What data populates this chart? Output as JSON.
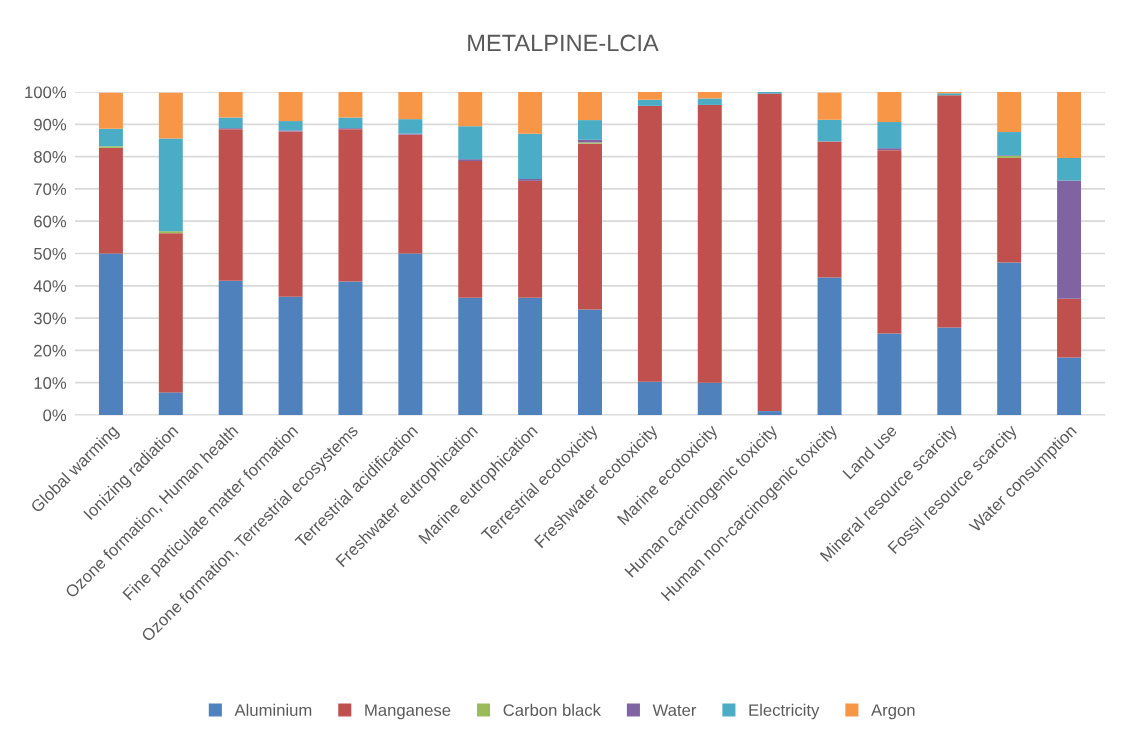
{
  "chart_data": {
    "type": "bar",
    "stacked": true,
    "title": "METALPINE-LCIA",
    "categories": [
      "Global warming",
      "Ionizing radiation",
      "Ozone formation, Human health",
      "Fine particulate matter formation",
      "Ozone formation, Terrestrial ecosystems",
      "Terrestrial acidification",
      "Freshwater eutrophication",
      "Marine eutrophication",
      "Terrestrial ecotoxicity",
      "Freshwater ecotoxicity",
      "Marine ecotoxicity",
      "Human carcinogenic toxicity",
      "Human non-carcinogenic toxicity",
      "Land use",
      "Mineral resource scarcity",
      "Fossil resource scarcity",
      "Water consumption"
    ],
    "series": [
      {
        "name": "Aluminium",
        "color": "#4f81bd",
        "values": [
          50,
          7.0,
          41.6,
          36.6,
          41.3,
          50,
          36.3,
          36.3,
          32.7,
          10.3,
          10.0,
          1.2,
          42.6,
          25.2,
          27.1,
          47.2,
          17.8
        ]
      },
      {
        "name": "Manganese",
        "color": "#c0504d",
        "values": [
          32.7,
          49.3,
          46.9,
          51.2,
          47.2,
          36.8,
          42.3,
          36.2,
          51.3,
          85.4,
          86.0,
          98.3,
          42.1,
          56.8,
          71.9,
          32.4,
          18.2
        ]
      },
      {
        "name": "Carbon black",
        "color": "#9bbb59",
        "values": [
          0.5,
          0.6,
          0,
          0,
          0,
          0,
          0,
          0,
          0.4,
          0,
          0,
          0,
          0,
          0,
          0,
          0.6,
          0
        ]
      },
      {
        "name": "Water",
        "color": "#8064a2",
        "values": [
          null,
          null,
          0.3,
          0.3,
          0.3,
          0.3,
          0.6,
          0.6,
          0.8,
          0,
          0,
          0,
          null,
          0.6,
          0,
          0.2,
          36.6
        ]
      },
      {
        "name": "Electricity",
        "color": "#4bacc6",
        "values": [
          5.4,
          28.7,
          3.3,
          2.9,
          3.3,
          4.5,
          10.2,
          14.0,
          6.1,
          1.9,
          2.0,
          0.5,
          6.7,
          8.1,
          0.6,
          7.2,
          7.0
        ]
      },
      {
        "name": "Argon",
        "color": "#f79646",
        "values": [
          11.2,
          14.2,
          7.9,
          9.0,
          7.9,
          8.4,
          10.6,
          12.9,
          8.7,
          2.4,
          2.0,
          0,
          8.4,
          9.3,
          0.4,
          12.6,
          20.4
        ]
      }
    ],
    "ylim": [
      0,
      100
    ],
    "yticks": [
      {
        "value": 0,
        "label": "0%"
      },
      {
        "value": 10,
        "label": "10%"
      },
      {
        "value": 20,
        "label": "20%"
      },
      {
        "value": 30,
        "label": "30%"
      },
      {
        "value": 40,
        "label": "40%"
      },
      {
        "value": 50,
        "label": "50%"
      },
      {
        "value": 60,
        "label": "60%"
      },
      {
        "value": 70,
        "label": "70%"
      },
      {
        "value": 80,
        "label": "80%"
      },
      {
        "value": 90,
        "label": "90%"
      },
      {
        "value": 100,
        "label": "100%"
      }
    ],
    "grid": "y",
    "legend": "bottom"
  }
}
